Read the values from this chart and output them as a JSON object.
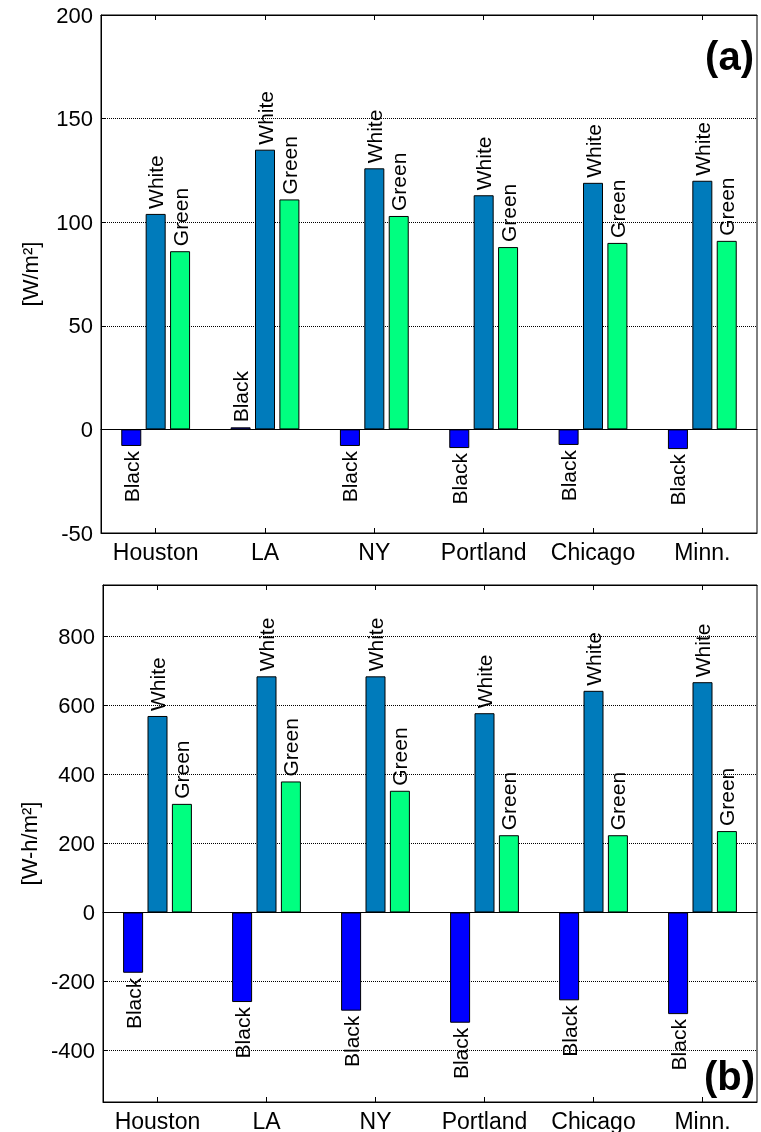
{
  "chart_data": [
    {
      "type": "bar",
      "ylabel": "[W/m²]",
      "categories": [
        "Houston",
        "LA",
        "NY",
        "Portland",
        "Chicago",
        "Minn."
      ],
      "series": [
        {
          "name": "Black",
          "color": "#0000ff",
          "values": [
            -8,
            1,
            -8,
            -9,
            -7.5,
            -9.5
          ]
        },
        {
          "name": "White",
          "color": "#007bbb",
          "values": [
            104,
            135,
            126,
            113,
            119,
            120
          ]
        },
        {
          "name": "Green",
          "color": "#00ff80",
          "values": [
            86,
            111,
            103,
            88,
            90,
            91
          ]
        }
      ],
      "ylim": [
        -50,
        200
      ],
      "yticks": [
        -50,
        0,
        50,
        100,
        150,
        200
      ],
      "grid": "y",
      "annotations": [
        "(a)"
      ]
    },
    {
      "type": "bar",
      "ylabel": "[W-h/m²]",
      "categories": [
        "Houston",
        "LA",
        "NY",
        "Portland",
        "Chicago",
        "Minn."
      ],
      "series": [
        {
          "name": "Black",
          "color": "#0000ff",
          "values": [
            -175,
            -260,
            -285,
            -320,
            -255,
            -295
          ]
        },
        {
          "name": "White",
          "color": "#007bbb",
          "values": [
            570,
            685,
            685,
            578,
            643,
            668
          ]
        },
        {
          "name": "Green",
          "color": "#00ff80",
          "values": [
            315,
            380,
            353,
            224,
            224,
            236
          ]
        }
      ],
      "ylim": [
        -550,
        950
      ],
      "yticks": [
        -400,
        -200,
        0,
        200,
        400,
        600,
        800
      ],
      "grid": "y",
      "annotations": [
        "(b)"
      ]
    }
  ]
}
